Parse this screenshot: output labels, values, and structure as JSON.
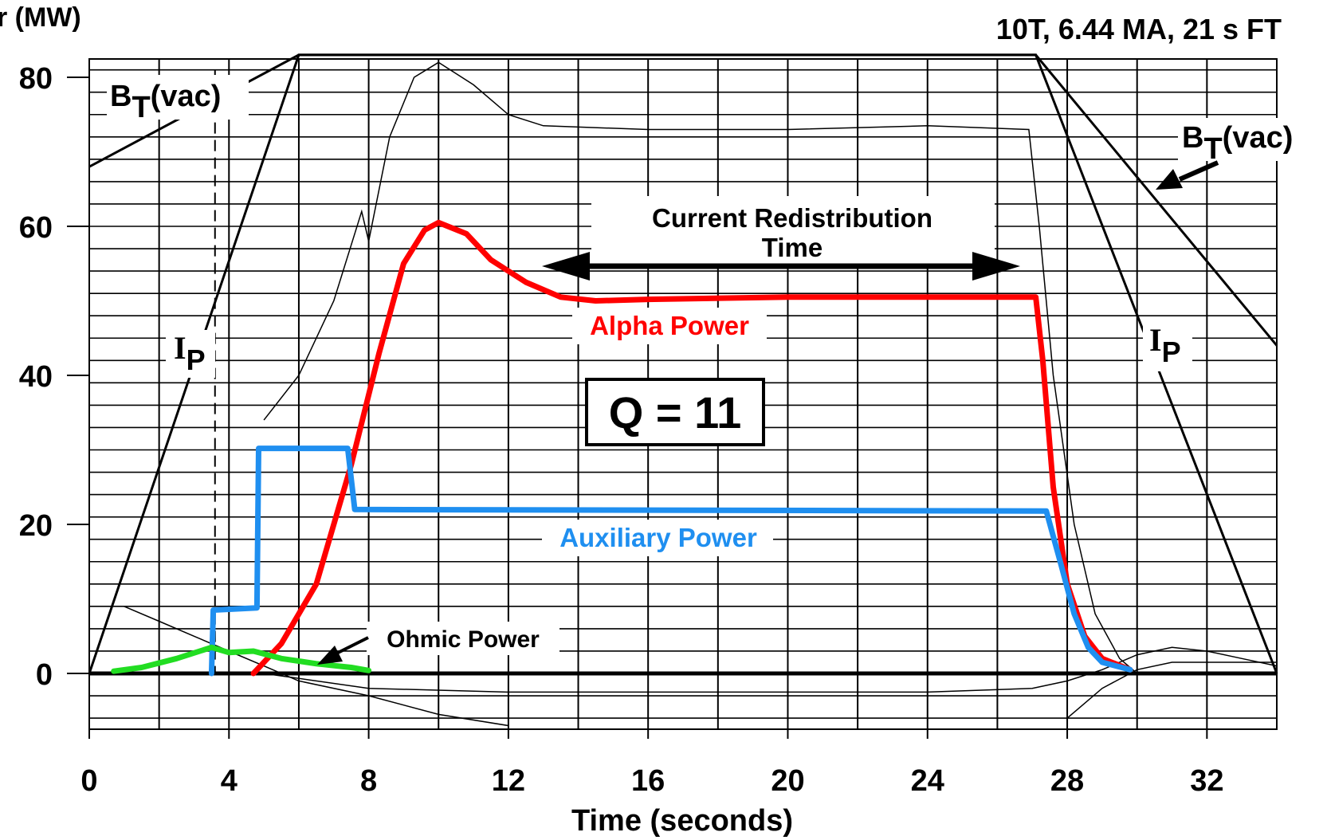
{
  "chart_data": {
    "type": "line",
    "title": "10T, 6.44 MA,  21 s FT",
    "xlabel": "Time (seconds)",
    "ylabel": "r (MW)",
    "xlim": [
      0,
      34
    ],
    "ylim": [
      -7,
      84
    ],
    "x_ticks": [
      0,
      4,
      8,
      12,
      16,
      20,
      24,
      28,
      32
    ],
    "y_ticks": [
      0,
      20,
      40,
      60,
      80
    ],
    "grid": true,
    "series": [
      {
        "name": "Alpha  Power",
        "color": "#ff0000",
        "x": [
          4.7,
          5.5,
          6.5,
          7.5,
          8.3,
          9.0,
          9.6,
          10.0,
          10.8,
          11.5,
          12.5,
          13.5,
          14.5,
          16,
          20,
          24,
          27.1,
          27.3,
          27.6,
          28.0,
          28.5,
          29.0,
          29.8
        ],
        "y": [
          0,
          4,
          12,
          28,
          43,
          55,
          59.5,
          60.5,
          59,
          55.5,
          52.5,
          50.5,
          50,
          50.2,
          50.5,
          50.5,
          50.5,
          42,
          25,
          12,
          5,
          2,
          0.5
        ]
      },
      {
        "name": "Auxiliary Power",
        "color": "#1f8ff0",
        "x": [
          3.5,
          3.55,
          4.8,
          4.85,
          7.4,
          7.6,
          27.4,
          27.8,
          28.2,
          28.6,
          29.0,
          29.8
        ],
        "y": [
          0,
          8.5,
          8.8,
          30.2,
          30.2,
          22,
          21.8,
          15,
          8,
          3.5,
          1.5,
          0.5
        ]
      },
      {
        "name": "Ohmic Power",
        "color": "#22dd22",
        "x": [
          0.7,
          1.5,
          2.5,
          3.5,
          4.0,
          4.7,
          5.5,
          6.5,
          7.5,
          8.0
        ],
        "y": [
          0.3,
          0.8,
          2,
          3.5,
          2.8,
          3,
          2,
          1.3,
          0.8,
          0.4
        ]
      },
      {
        "name": "B_T(vac)",
        "color": "#000000",
        "x": [
          0,
          6,
          27.1,
          34
        ],
        "y": [
          68,
          83,
          83,
          44
        ]
      },
      {
        "name": "I_P",
        "color": "#000000",
        "x": [
          0,
          6,
          27.1,
          34
        ],
        "y": [
          0,
          83,
          83,
          0
        ]
      }
    ],
    "annotations": [
      {
        "text": "Current Redistribution",
        "x": 20,
        "y": 61
      },
      {
        "text": "Time",
        "x": 20,
        "y": 57.5
      },
      {
        "text": "Q = 11",
        "x": 17,
        "y": 35.5
      },
      {
        "text": "Alpha  Power",
        "x": 16.3,
        "y": 46
      },
      {
        "text": "Auxiliary Power",
        "x": 16.2,
        "y": 18.5
      },
      {
        "text": "Ohmic Power",
        "x": 10.4,
        "y": 4.8
      }
    ],
    "bt_label_left": {
      "main": "B",
      "sub": "T",
      "rest": "(vac)"
    },
    "bt_label_right": {
      "main": "B",
      "sub": "T",
      "rest": "(vac)"
    },
    "ip_label_left": {
      "main": "I",
      "sub": "P"
    },
    "ip_label_right": {
      "main": "I",
      "sub": "P"
    }
  }
}
